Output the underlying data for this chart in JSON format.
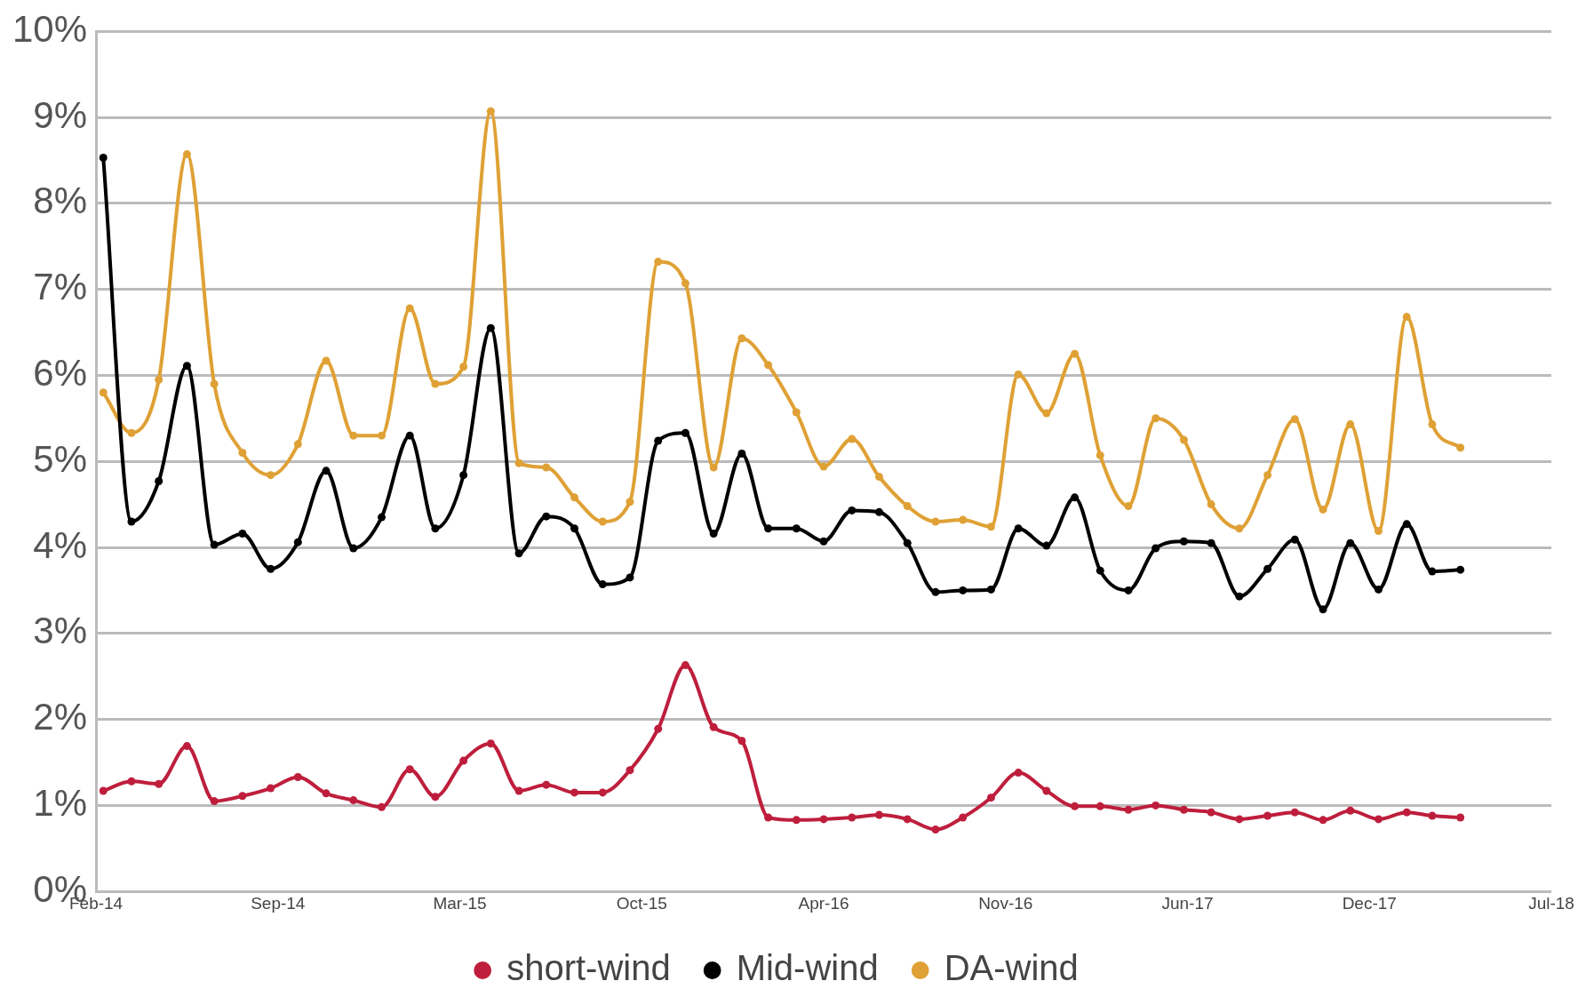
{
  "chart_data": {
    "type": "line",
    "x": [
      "2014-02-28",
      "2014-03-31",
      "2014-04-30",
      "2014-05-31",
      "2014-06-30",
      "2014-07-31",
      "2014-08-31",
      "2014-09-30",
      "2014-10-31",
      "2014-11-30",
      "2014-12-31",
      "2015-01-31",
      "2015-02-28",
      "2015-03-31",
      "2015-04-30",
      "2015-05-31",
      "2015-06-30",
      "2015-07-31",
      "2015-08-31",
      "2015-09-30",
      "2015-10-31",
      "2015-11-30",
      "2015-12-31",
      "2016-01-31",
      "2016-02-29",
      "2016-03-31",
      "2016-04-30",
      "2016-05-31",
      "2016-06-30",
      "2016-07-31",
      "2016-08-31",
      "2016-09-30",
      "2016-10-31",
      "2016-11-30",
      "2016-12-31",
      "2017-01-31",
      "2017-02-28",
      "2017-03-31",
      "2017-04-30",
      "2017-05-31",
      "2017-06-30",
      "2017-07-31",
      "2017-08-31",
      "2017-09-30",
      "2017-10-31",
      "2017-11-30",
      "2017-12-31",
      "2018-01-31",
      "2018-02-28",
      "2018-03-31"
    ],
    "series": [
      {
        "name": "short-wind",
        "color": "#be1e3c",
        "values": [
          1.17,
          1.28,
          1.25,
          1.69,
          1.05,
          1.11,
          1.2,
          1.33,
          1.14,
          1.06,
          0.98,
          1.42,
          1.1,
          1.52,
          1.72,
          1.17,
          1.24,
          1.15,
          1.15,
          1.41,
          1.89,
          2.63,
          1.91,
          1.75,
          0.86,
          0.83,
          0.84,
          0.86,
          0.89,
          0.84,
          0.72,
          0.86,
          1.09,
          1.38,
          1.17,
          0.99,
          0.99,
          0.95,
          1.0,
          0.95,
          0.92,
          0.84,
          0.88,
          0.92,
          0.83,
          0.94,
          0.84,
          0.92,
          0.88,
          0.86
        ]
      },
      {
        "name": "Mid-wind",
        "color": "#000000",
        "values": [
          8.53,
          4.3,
          4.77,
          6.11,
          4.03,
          4.16,
          3.75,
          4.06,
          4.89,
          3.99,
          4.35,
          5.3,
          4.22,
          4.84,
          6.55,
          3.93,
          4.36,
          4.22,
          3.57,
          3.65,
          5.24,
          5.33,
          4.16,
          5.09,
          4.22,
          4.22,
          4.07,
          4.43,
          4.41,
          4.05,
          3.48,
          3.5,
          3.51,
          4.22,
          4.02,
          4.58,
          3.73,
          3.5,
          3.99,
          4.07,
          4.05,
          3.43,
          3.75,
          4.09,
          3.28,
          4.05,
          3.51,
          4.27,
          3.72,
          3.74
        ]
      },
      {
        "name": "DA-wind",
        "color": "#dfa135",
        "values": [
          5.8,
          5.33,
          5.95,
          8.57,
          5.9,
          5.1,
          4.84,
          5.2,
          6.17,
          5.3,
          5.3,
          6.78,
          5.9,
          6.1,
          9.07,
          4.98,
          4.93,
          4.58,
          4.3,
          4.53,
          7.32,
          7.07,
          4.93,
          6.43,
          6.12,
          5.57,
          4.94,
          5.26,
          4.82,
          4.48,
          4.3,
          4.32,
          4.24,
          6.01,
          5.56,
          6.25,
          5.07,
          4.48,
          5.5,
          5.25,
          4.5,
          4.22,
          4.84,
          5.49,
          4.44,
          5.43,
          4.19,
          6.68,
          5.43,
          5.16
        ]
      }
    ],
    "xlim": [
      "2014-02-20",
      "2018-07-09"
    ],
    "xticks": [
      {
        "value": "2014-02-20",
        "label": "Feb-14"
      },
      {
        "value": "2014-09-08",
        "label": "Sep-14"
      },
      {
        "value": "2015-03-27",
        "label": "Mar-15"
      },
      {
        "value": "2015-10-13",
        "label": "Oct-15"
      },
      {
        "value": "2016-04-30",
        "label": "Apr-16"
      },
      {
        "value": "2016-11-16",
        "label": "Nov-16"
      },
      {
        "value": "2017-06-04",
        "label": "Jun-17"
      },
      {
        "value": "2017-12-21",
        "label": "Dec-17"
      },
      {
        "value": "2018-07-09",
        "label": "Jul-18"
      }
    ],
    "ylim": [
      0,
      10
    ],
    "yticks": [
      {
        "value": 0,
        "label": "0%"
      },
      {
        "value": 1,
        "label": "1%"
      },
      {
        "value": 2,
        "label": "2%"
      },
      {
        "value": 3,
        "label": "3%"
      },
      {
        "value": 4,
        "label": "4%"
      },
      {
        "value": 5,
        "label": "5%"
      },
      {
        "value": 6,
        "label": "6%"
      },
      {
        "value": 7,
        "label": "7%"
      },
      {
        "value": 8,
        "label": "8%"
      },
      {
        "value": 9,
        "label": "9%"
      },
      {
        "value": 10,
        "label": "10%"
      }
    ],
    "grid": "y",
    "legend": "bottom",
    "marker": "circle",
    "line_style": "solid"
  }
}
